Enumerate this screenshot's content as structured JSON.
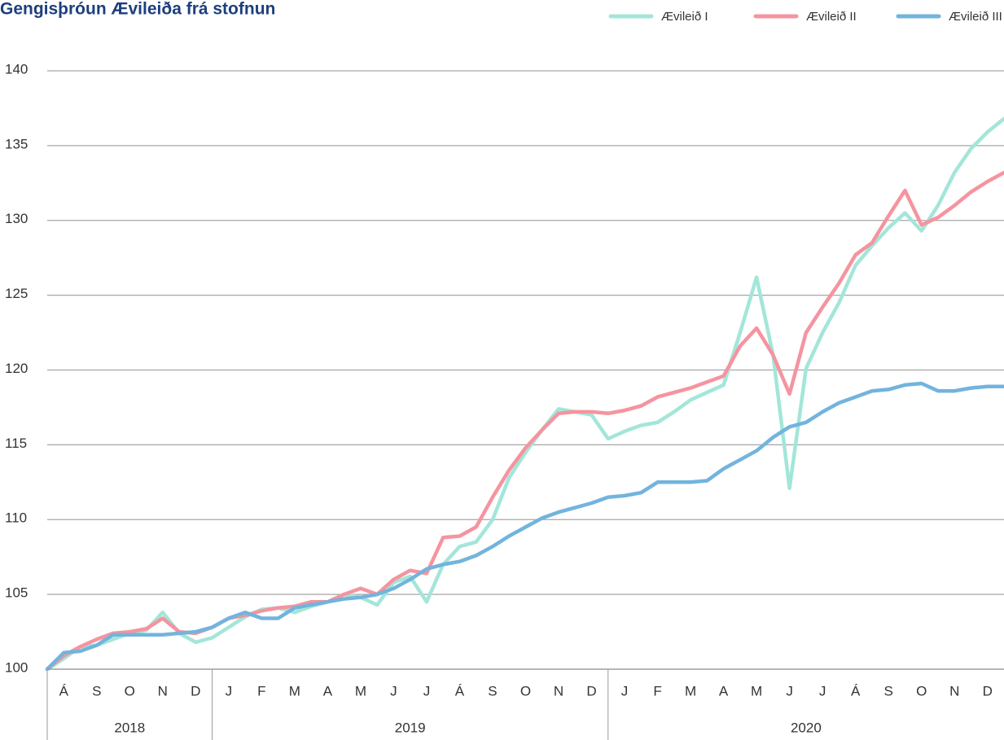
{
  "chart_data": {
    "type": "line",
    "title": "Gengisþróun Ævileiða frá stofnun",
    "categories": [
      null,
      "Á",
      null,
      "S",
      null,
      "O",
      null,
      "N",
      null,
      "D",
      null,
      "J",
      null,
      "F",
      null,
      "M",
      null,
      "A",
      null,
      "M",
      null,
      "J",
      null,
      "J",
      null,
      "Á",
      null,
      "S",
      null,
      "O",
      null,
      "N",
      null,
      "D",
      null,
      "J",
      null,
      "F",
      null,
      "M",
      null,
      "A",
      null,
      "M",
      null,
      "J",
      null,
      "J",
      null,
      "Á",
      null,
      "S",
      null,
      "O",
      null,
      "N",
      null,
      "D",
      null
    ],
    "years": [
      "2018",
      "2019",
      "2020"
    ],
    "series": [
      {
        "name": "Ævileið I",
        "color": "#a3e6d9",
        "values": [
          100,
          100.7,
          101.5,
          101.6,
          102.0,
          102.4,
          102.6,
          103.8,
          102.4,
          101.8,
          102.1,
          102.8,
          103.5,
          104.0,
          104.1,
          103.8,
          104.2,
          104.5,
          105.0,
          104.8,
          104.3,
          105.8,
          106.2,
          104.5,
          107.0,
          108.2,
          108.5,
          110.0,
          112.8,
          114.5,
          116.0,
          117.4,
          117.2,
          117.0,
          115.4,
          115.9,
          116.3,
          116.5,
          117.2,
          118.0,
          118.5,
          119.0,
          122.5,
          126.2,
          121.0,
          112.1,
          120.1,
          122.5,
          124.5,
          127.0,
          128.3,
          129.5,
          130.5,
          129.3,
          131.0,
          133.2,
          134.8,
          135.9,
          136.8
        ]
      },
      {
        "name": "Ævileið II",
        "color": "#f5949f",
        "values": [
          100,
          100.9,
          101.5,
          102.0,
          102.4,
          102.5,
          102.7,
          103.4,
          102.5,
          102.4,
          102.8,
          103.4,
          103.6,
          103.9,
          104.1,
          104.2,
          104.5,
          104.5,
          105.0,
          105.4,
          105.0,
          106.0,
          106.6,
          106.4,
          108.8,
          108.9,
          109.5,
          111.5,
          113.3,
          114.8,
          116.0,
          117.1,
          117.2,
          117.2,
          117.1,
          117.3,
          117.6,
          118.2,
          118.5,
          118.8,
          119.2,
          119.6,
          121.6,
          122.8,
          121.0,
          118.4,
          122.5,
          124.2,
          125.8,
          127.7,
          128.5,
          130.3,
          132.0,
          129.7,
          130.2,
          131.0,
          131.9,
          132.6,
          133.2
        ]
      },
      {
        "name": "Ævileið III",
        "color": "#72b4dd",
        "values": [
          100,
          101.1,
          101.2,
          101.6,
          102.3,
          102.3,
          102.3,
          102.3,
          102.4,
          102.5,
          102.8,
          103.4,
          103.8,
          103.4,
          103.4,
          104.1,
          104.3,
          104.5,
          104.7,
          104.8,
          105.0,
          105.4,
          106.0,
          106.7,
          107.0,
          107.2,
          107.6,
          108.2,
          108.9,
          109.5,
          110.1,
          110.5,
          110.8,
          111.1,
          111.5,
          111.6,
          111.8,
          112.5,
          112.5,
          112.5,
          112.6,
          113.4,
          114.0,
          114.6,
          115.5,
          116.2,
          116.5,
          117.2,
          117.8,
          118.2,
          118.6,
          118.7,
          119.0,
          119.1,
          118.6,
          118.6,
          118.8,
          118.9,
          118.9
        ]
      }
    ],
    "ylim": [
      100,
      140
    ],
    "yticks": [
      100,
      105,
      110,
      115,
      120,
      125,
      130,
      135,
      140
    ],
    "grid": true,
    "legend": "top-right"
  }
}
